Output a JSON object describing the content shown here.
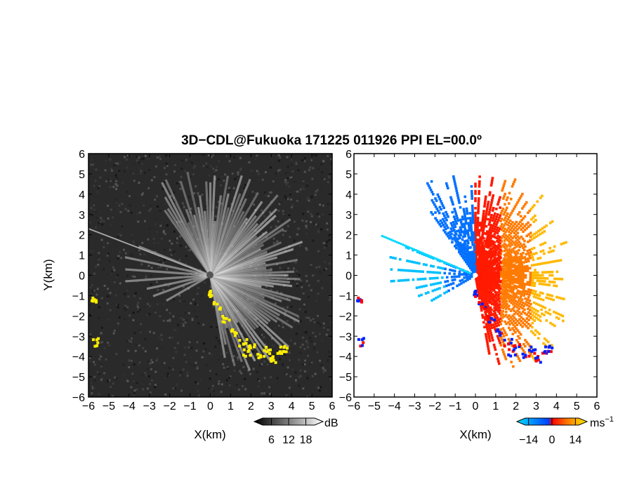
{
  "title": "3D−CDL@Fukuoka 171225 011926 PPI EL=00.0º",
  "chart_data": [
    {
      "type": "heatmap",
      "panel": "reflectivity",
      "xlabel": "X(km)",
      "ylabel": "Y(km)",
      "xlim": [
        -6,
        6
      ],
      "ylim": [
        -6,
        6
      ],
      "xticks": [
        "−6",
        "−5",
        "−4",
        "−3",
        "−2",
        "−1",
        "0",
        "1",
        "2",
        "3",
        "4",
        "5",
        "6"
      ],
      "yticks": [
        "6",
        "5",
        "4",
        "3",
        "2",
        "1",
        "0",
        "−1",
        "−2",
        "−3",
        "−4",
        "−5",
        "−6"
      ],
      "colorbar": {
        "unit": "dB",
        "ticks": [
          "6",
          "12",
          "18"
        ],
        "range": [
          0,
          24
        ],
        "colors": [
          "#000000",
          "#ffffff"
        ]
      },
      "highlight_color": "#ffee00"
    },
    {
      "type": "heatmap",
      "panel": "doppler velocity",
      "xlabel": "X(km)",
      "ylim": [
        -6,
        6
      ],
      "xlim": [
        -6,
        6
      ],
      "xticks": [
        "−6",
        "−5",
        "−4",
        "−3",
        "−2",
        "−1",
        "0",
        "1",
        "2",
        "3",
        "4",
        "5",
        "6"
      ],
      "yticks": [
        "6",
        "5",
        "4",
        "3",
        "2",
        "1",
        "0",
        "−1",
        "−2",
        "−3",
        "−4",
        "−5",
        "−6"
      ],
      "colorbar": {
        "unit": "ms",
        "unit_exp": "−1",
        "ticks": [
          "−14",
          "0",
          "14"
        ],
        "range": [
          -21,
          21
        ],
        "colors": [
          "#00e0ff",
          "#0040ff",
          "#ff0000",
          "#ffee00"
        ]
      }
    }
  ]
}
